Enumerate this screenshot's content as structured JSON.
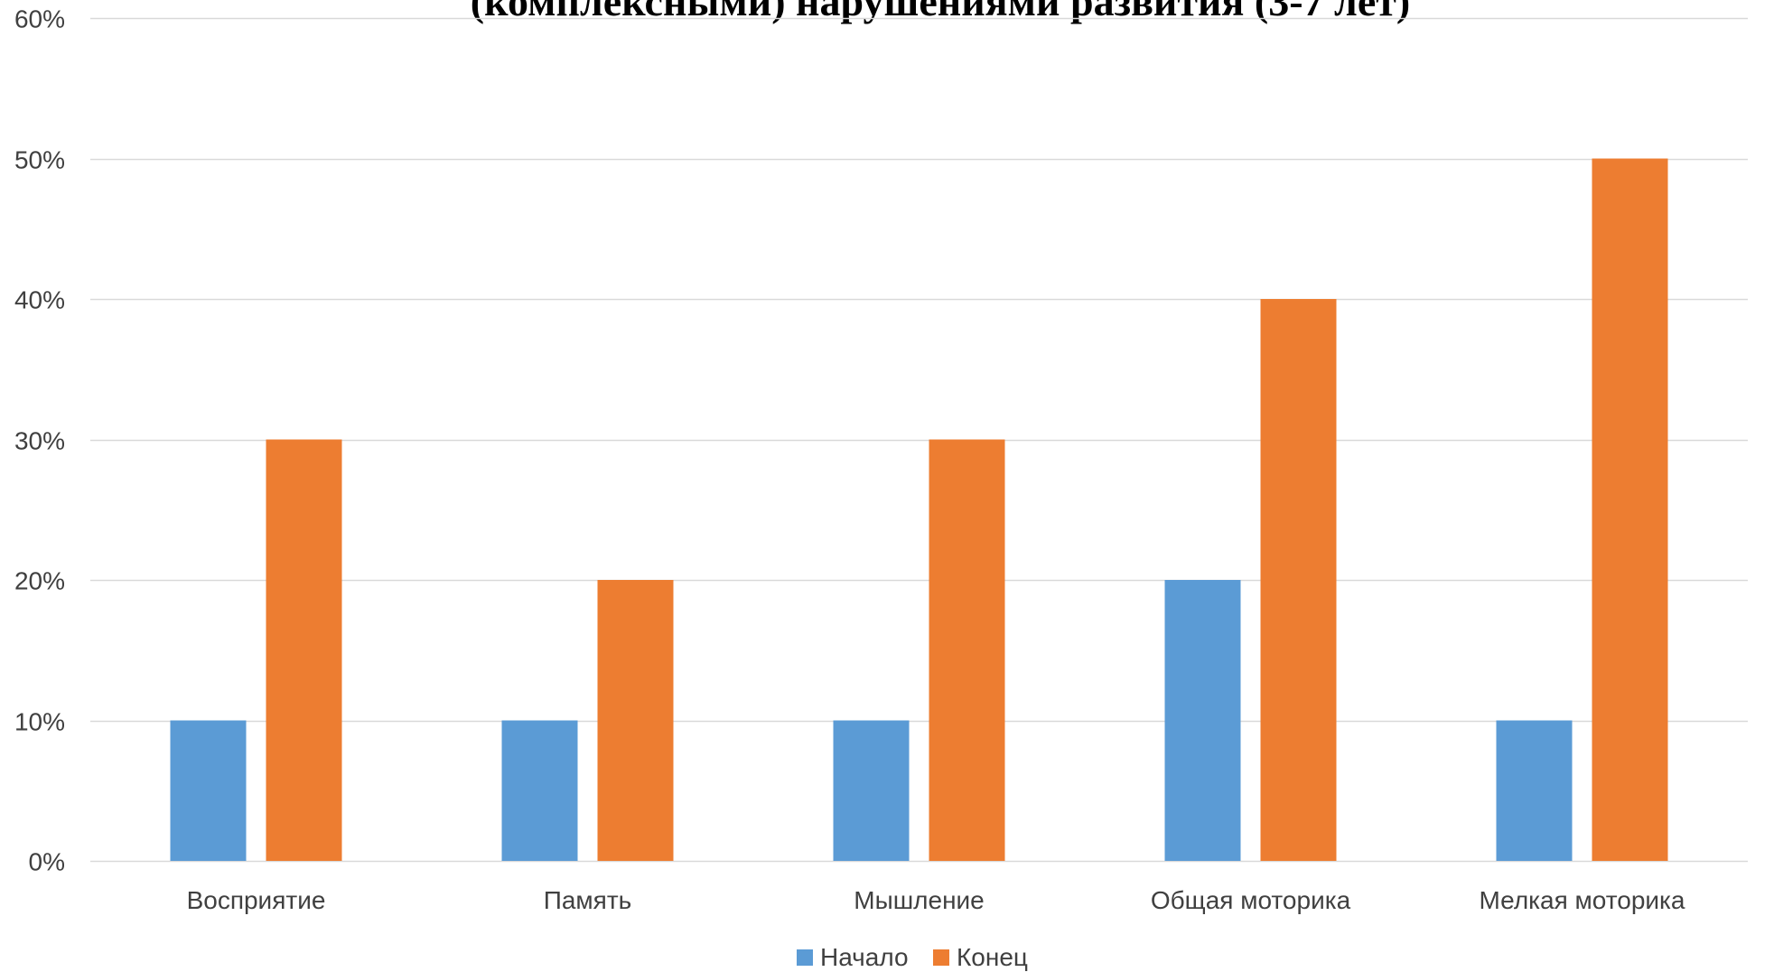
{
  "chart_data": {
    "type": "bar",
    "title": "(комплексными) нарушениями развития (3-7 лет)",
    "categories": [
      "Восприятие",
      "Память",
      "Мышление",
      "Общая моторика",
      "Мелкая моторика"
    ],
    "series": [
      {
        "name": "Начало",
        "values": [
          10,
          10,
          10,
          20,
          10
        ],
        "color": "#5b9bd5"
      },
      {
        "name": "Конец",
        "values": [
          30,
          20,
          30,
          40,
          50
        ],
        "color": "#ed7d31"
      }
    ],
    "ylim": [
      0,
      60
    ],
    "yticks": [
      0,
      10,
      20,
      30,
      40,
      50,
      60
    ],
    "ytick_labels": [
      "0%",
      "10%",
      "20%",
      "30%",
      "40%",
      "50%",
      "60%"
    ],
    "unit": "%",
    "grid": true,
    "legend": "bottom",
    "gridline_color": "#d9d9d9"
  }
}
